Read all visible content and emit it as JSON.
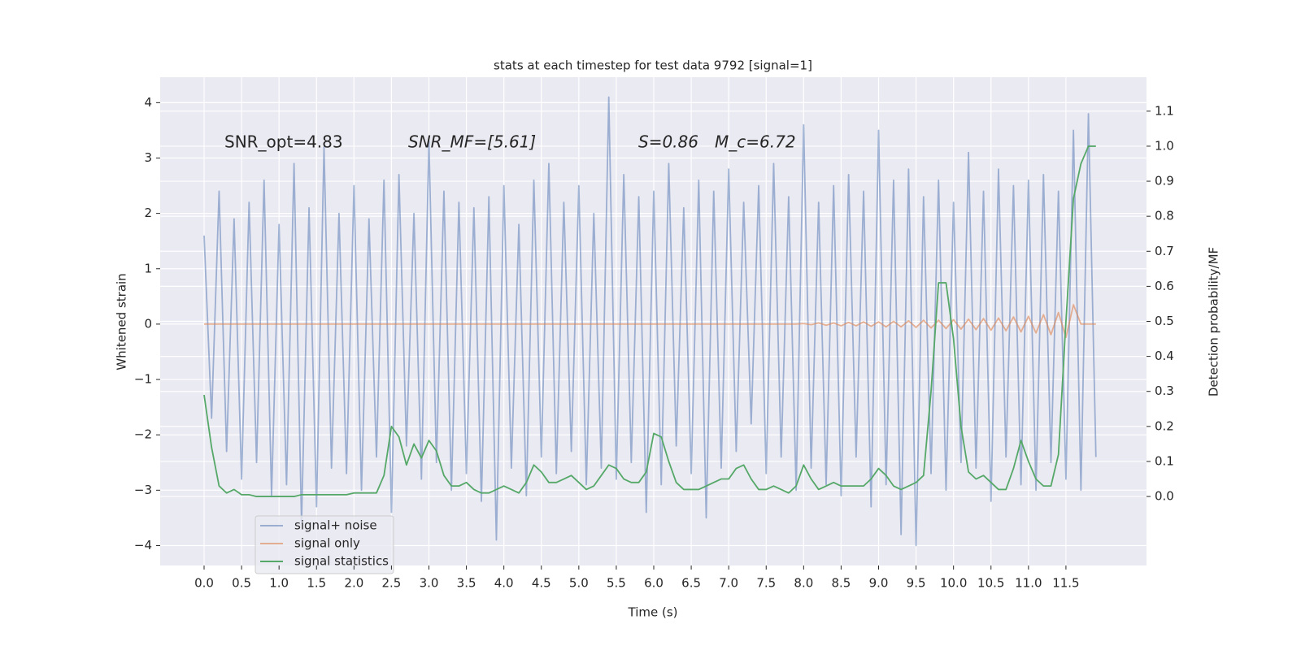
{
  "chart_data": {
    "type": "line",
    "title": "stats at each timestep for test data 9792 [signal=1]",
    "xlabel": "Time (s)",
    "ylabel": "Whitened strain",
    "y2label": "Detection probability/MF",
    "annotations": [
      "SNR_opt=4.83",
      "SNR_MF=[5.61]",
      "S=0.86",
      "M_c=6.72"
    ],
    "legend_loc": "lower left",
    "grid": true,
    "xlim": [
      -0.586,
      12.575
    ],
    "ylim": [
      -4.36,
      4.46
    ],
    "y2lim": [
      -0.197,
      1.197
    ],
    "xticks": [
      {
        "value": 0,
        "label": "0.0"
      },
      0.5,
      {
        "value": 1,
        "label": "1.0"
      },
      1.5,
      {
        "value": 2,
        "label": "2.0"
      },
      2.5,
      {
        "value": 3,
        "label": "3.0"
      },
      3.5,
      {
        "value": 4,
        "label": "4.0"
      },
      4.5,
      {
        "value": 5,
        "label": "5.0"
      },
      5.5,
      {
        "value": 6,
        "label": "6.0"
      },
      6.5,
      {
        "value": 7,
        "label": "7.0"
      },
      7.5,
      {
        "value": 8,
        "label": "8.0"
      },
      8.5,
      {
        "value": 9,
        "label": "9.0"
      },
      9.5,
      {
        "value": 10,
        "label": "10.0"
      },
      10.5,
      {
        "value": 11,
        "label": "11.0"
      },
      11.5
    ],
    "yticks": [
      {
        "value": -4,
        "label": "−4"
      },
      {
        "value": -3,
        "label": "−3"
      },
      {
        "value": -2,
        "label": "−2"
      },
      {
        "value": -1,
        "label": "−1"
      },
      0,
      1,
      2,
      3,
      4
    ],
    "y2ticks": [
      {
        "value": 0,
        "label": "0.0"
      },
      0.1,
      0.2,
      0.3,
      0.4,
      0.5,
      0.6,
      0.7,
      0.8,
      0.9,
      {
        "value": 1,
        "label": "1.0"
      },
      1.1
    ],
    "x": [
      0,
      0.1,
      0.2,
      0.3,
      0.4,
      0.5,
      0.6,
      0.7,
      0.8,
      0.9,
      1,
      1.1,
      1.2,
      1.3,
      1.4,
      1.5,
      1.6,
      1.7,
      1.8,
      1.9,
      2,
      2.1,
      2.2,
      2.3,
      2.4,
      2.5,
      2.6,
      2.7,
      2.8,
      2.9,
      3,
      3.1,
      3.2,
      3.3,
      3.4,
      3.5,
      3.6,
      3.7,
      3.8,
      3.9,
      4,
      4.1,
      4.2,
      4.3,
      4.4,
      4.5,
      4.6,
      4.7,
      4.8,
      4.9,
      5,
      5.1,
      5.2,
      5.3,
      5.4,
      5.5,
      5.6,
      5.7,
      5.8,
      5.9,
      6,
      6.1,
      6.2,
      6.3,
      6.4,
      6.5,
      6.6,
      6.7,
      6.8,
      6.9,
      7,
      7.1,
      7.2,
      7.3,
      7.4,
      7.5,
      7.6,
      7.7,
      7.8,
      7.9,
      8,
      8.1,
      8.2,
      8.3,
      8.4,
      8.5,
      8.6,
      8.7,
      8.8,
      8.9,
      9,
      9.1,
      9.2,
      9.3,
      9.4,
      9.5,
      9.6,
      9.7,
      9.8,
      9.9,
      10,
      10.1,
      10.2,
      10.3,
      10.4,
      10.5,
      10.6,
      10.7,
      10.8,
      10.9,
      11,
      11.1,
      11.2,
      11.3,
      11.4,
      11.5,
      11.6,
      11.7,
      11.8,
      11.9
    ],
    "series": [
      {
        "name": "signal+ noise",
        "color": "#4c72b0",
        "opacity": 0.5,
        "values": [
          1.6,
          -1.7,
          2.4,
          -2.3,
          1.9,
          -2.8,
          2.2,
          -2.5,
          2.6,
          -3.1,
          1.8,
          -2.9,
          2.9,
          -3.6,
          2.1,
          -3.3,
          3.2,
          -2.6,
          2.0,
          -2.7,
          2.5,
          -3.0,
          1.9,
          -2.4,
          2.6,
          -3.4,
          2.7,
          -2.2,
          2.0,
          -2.8,
          3.3,
          -2.5,
          2.4,
          -3.0,
          2.2,
          -2.7,
          2.1,
          -3.2,
          2.3,
          -3.9,
          2.5,
          -2.6,
          1.8,
          -3.1,
          2.6,
          -2.4,
          2.9,
          -2.7,
          2.2,
          -2.3,
          2.5,
          -2.9,
          2.0,
          -2.6,
          4.1,
          -2.8,
          2.7,
          -2.5,
          2.3,
          -3.4,
          2.4,
          -2.9,
          2.9,
          -2.2,
          2.1,
          -2.7,
          2.6,
          -3.5,
          2.4,
          -2.6,
          2.8,
          -2.3,
          2.2,
          -1.8,
          2.5,
          -2.7,
          2.9,
          -2.4,
          2.3,
          -3.0,
          3.6,
          -2.6,
          2.2,
          -2.9,
          2.5,
          -3.1,
          2.7,
          -2.4,
          2.4,
          -3.3,
          3.5,
          -2.9,
          2.6,
          -3.8,
          2.8,
          -4.0,
          2.3,
          -2.7,
          2.6,
          -3.0,
          2.2,
          -2.5,
          3.1,
          -2.6,
          2.4,
          -3.2,
          2.8,
          -2.4,
          2.5,
          -2.9,
          2.6,
          -3.0,
          2.7,
          -2.5,
          2.4,
          -2.8,
          3.5,
          -3.0,
          3.8,
          -2.4
        ]
      },
      {
        "name": "signal only",
        "color": "#dd8452",
        "opacity": 0.6,
        "values": [
          0,
          0,
          0,
          0,
          0,
          0,
          0,
          0,
          0,
          0,
          0,
          0,
          0,
          0,
          0,
          0,
          0,
          0,
          0,
          0,
          0,
          0,
          0,
          0,
          0,
          0,
          0,
          0,
          0,
          0,
          0,
          0,
          0,
          0,
          0,
          0,
          0,
          0,
          0,
          0,
          0,
          0,
          0,
          0,
          0,
          0,
          0,
          0,
          0,
          0,
          0,
          0,
          0,
          0,
          0,
          0,
          0,
          0,
          0,
          0,
          0,
          0,
          0,
          0,
          0,
          0,
          0,
          0,
          0,
          0,
          0,
          0,
          0,
          0,
          0,
          0,
          0,
          0,
          0,
          0,
          0.01,
          -0.01,
          0.02,
          -0.02,
          0.02,
          -0.03,
          0.03,
          -0.03,
          0.04,
          -0.04,
          0.04,
          -0.05,
          0.05,
          -0.05,
          0.06,
          -0.06,
          0.07,
          -0.07,
          0.07,
          -0.08,
          0.08,
          -0.09,
          0.09,
          -0.1,
          0.1,
          -0.11,
          0.11,
          -0.12,
          0.13,
          -0.14,
          0.14,
          -0.16,
          0.17,
          -0.19,
          0.21,
          -0.24,
          0.35,
          0,
          0,
          0
        ]
      },
      {
        "name": "signal statistics",
        "color": "#55a868",
        "opacity": 1,
        "axis": "y2",
        "values": [
          0.29,
          0.14,
          0.03,
          0.01,
          0.02,
          0.005,
          0.005,
          0,
          0,
          0,
          0,
          0,
          0,
          0.005,
          0.005,
          0.005,
          0.005,
          0.005,
          0.005,
          0.005,
          0.01,
          0.01,
          0.01,
          0.01,
          0.06,
          0.2,
          0.17,
          0.09,
          0.15,
          0.11,
          0.16,
          0.13,
          0.06,
          0.03,
          0.03,
          0.04,
          0.02,
          0.01,
          0.01,
          0.02,
          0.03,
          0.02,
          0.01,
          0.04,
          0.09,
          0.07,
          0.04,
          0.04,
          0.05,
          0.06,
          0.04,
          0.02,
          0.03,
          0.06,
          0.09,
          0.08,
          0.05,
          0.04,
          0.04,
          0.07,
          0.18,
          0.17,
          0.1,
          0.04,
          0.02,
          0.02,
          0.02,
          0.03,
          0.04,
          0.05,
          0.05,
          0.08,
          0.09,
          0.05,
          0.02,
          0.02,
          0.03,
          0.02,
          0.01,
          0.03,
          0.09,
          0.05,
          0.02,
          0.03,
          0.04,
          0.03,
          0.03,
          0.03,
          0.03,
          0.05,
          0.08,
          0.06,
          0.03,
          0.02,
          0.03,
          0.04,
          0.06,
          0.3,
          0.61,
          0.61,
          0.45,
          0.2,
          0.07,
          0.05,
          0.06,
          0.04,
          0.02,
          0.02,
          0.08,
          0.16,
          0.1,
          0.05,
          0.03,
          0.03,
          0.12,
          0.5,
          0.85,
          0.95,
          1.0,
          1.0
        ]
      }
    ]
  }
}
